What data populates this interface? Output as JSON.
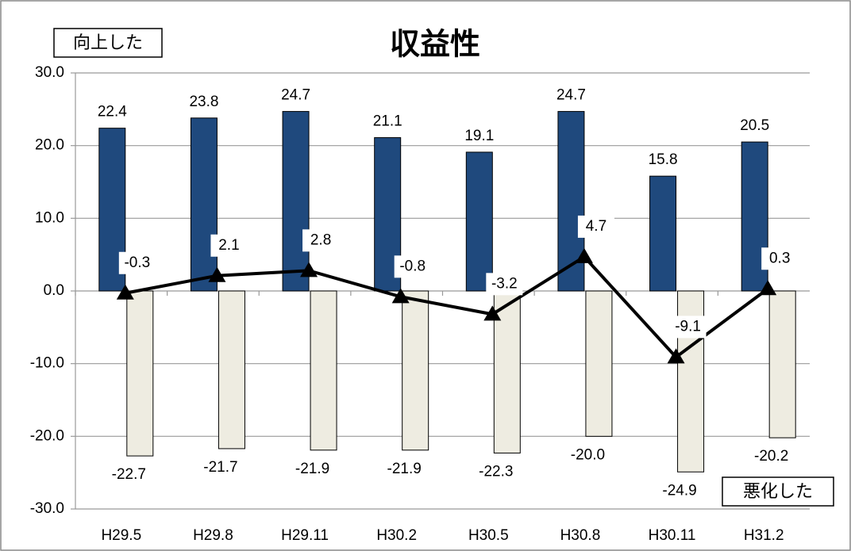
{
  "chart_data": {
    "type": "bar",
    "title": "収益性",
    "categories": [
      "H29.5",
      "H29.8",
      "H29.11",
      "H30.2",
      "H30.5",
      "H30.8",
      "H30.11",
      "H31.2"
    ],
    "series": [
      {
        "name": "向上した",
        "color": "#1f497d",
        "values": [
          22.4,
          23.8,
          24.7,
          21.1,
          19.1,
          24.7,
          15.8,
          20.5
        ]
      },
      {
        "name": "悪化した",
        "color": "#eeece1",
        "values": [
          -22.7,
          -21.7,
          -21.9,
          -21.9,
          -22.3,
          -20,
          -24.9,
          -20.2
        ],
        "value_labels": [
          "-22.7",
          "-21.7",
          "-21.9",
          "-21.9",
          "-22.3",
          "-20.0",
          "-24.9",
          "-20.2"
        ]
      },
      {
        "type": "line",
        "color": "#000000",
        "values": [
          -0.3,
          2.1,
          2.8,
          -0.8,
          -3.2,
          4.7,
          -9.1,
          0.3
        ]
      }
    ],
    "ylim": [
      -30,
      30
    ],
    "yticks": [
      {
        "value": -30,
        "label": "-30.0"
      },
      {
        "value": -20,
        "label": "-20.0"
      },
      {
        "value": -10,
        "label": "-10.0"
      },
      {
        "value": 0,
        "label": "0.0"
      },
      {
        "value": 10,
        "label": "10.0"
      },
      {
        "value": 20,
        "label": "20.0"
      },
      {
        "value": 30,
        "label": "30.0"
      }
    ],
    "grid": true
  }
}
